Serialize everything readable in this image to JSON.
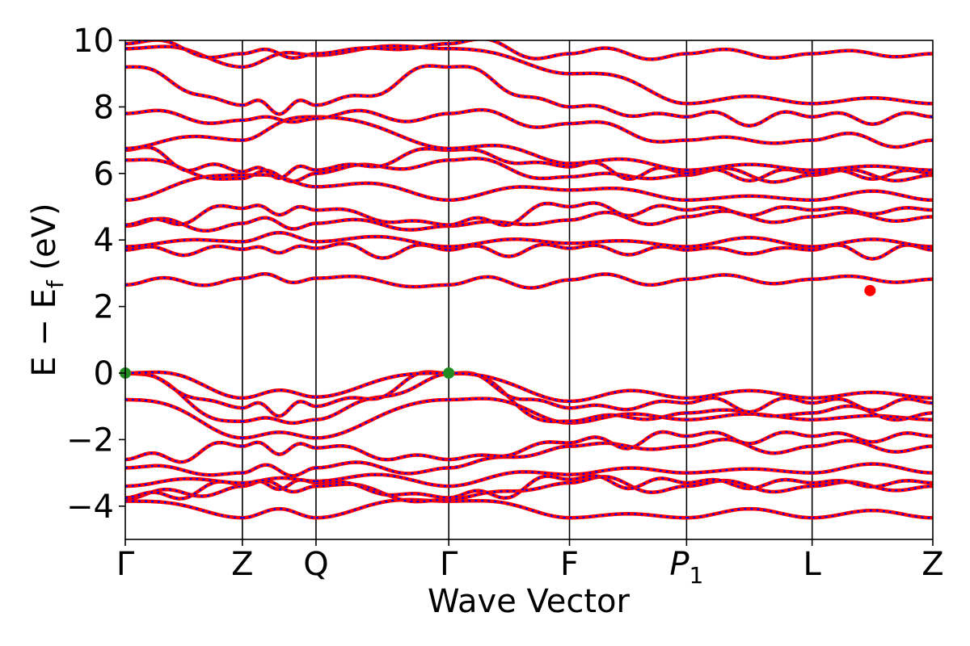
{
  "chart_data": {
    "type": "line",
    "xlabel": "Wave Vector",
    "ylabel": "E − E",
    "ylabel_sub": "f",
    "ylabel_unit": " (eV)",
    "ylim": [
      -5,
      10
    ],
    "yticks": [
      {
        "value": -4,
        "label": "−4"
      },
      {
        "value": -2,
        "label": "−2"
      },
      {
        "value": 0,
        "label": "0"
      },
      {
        "value": 2,
        "label": "2"
      },
      {
        "value": 4,
        "label": "4"
      },
      {
        "value": 6,
        "label": "6"
      },
      {
        "value": 8,
        "label": "8"
      },
      {
        "value": 10,
        "label": "10"
      }
    ],
    "kpoints": [
      {
        "label": "Γ",
        "sub": "",
        "italic": false,
        "x": 0
      },
      {
        "label": "Z",
        "sub": "",
        "italic": false,
        "x": 0.97
      },
      {
        "label": "Q",
        "sub": "",
        "italic": false,
        "x": 1.58
      },
      {
        "label": "Γ",
        "sub": "",
        "italic": false,
        "x": 2.68
      },
      {
        "label": "F",
        "sub": "",
        "italic": false,
        "x": 3.68
      },
      {
        "label": "P",
        "sub": "1",
        "italic": true,
        "x": 4.65
      },
      {
        "label": "L",
        "sub": "",
        "italic": false,
        "x": 5.69
      },
      {
        "label": "Z",
        "sub": "",
        "italic": false,
        "x": 6.69
      }
    ],
    "segments": [
      {
        "from": "Γ",
        "to": "Z",
        "bands": [
          {
            "start": -3.85,
            "end": -4.35
          },
          {
            "start": -3.8,
            "end": -3.4
          },
          {
            "start": -3.75,
            "end": -3.35
          },
          {
            "start": -3.4,
            "end": -3.3
          },
          {
            "start": -2.85,
            "end": -3.0
          },
          {
            "start": -2.6,
            "end": -2.2
          },
          {
            "start": -0.8,
            "end": -1.95
          },
          {
            "start": -0.02,
            "end": -1.45
          },
          {
            "start": -0.01,
            "end": -1.05
          },
          {
            "start": 0.0,
            "end": -0.75
          },
          {
            "start": 2.65,
            "end": 2.85
          },
          {
            "start": 3.7,
            "end": 3.72
          },
          {
            "start": 3.8,
            "end": 3.95
          },
          {
            "start": 4.42,
            "end": 4.5
          },
          {
            "start": 4.45,
            "end": 4.95
          },
          {
            "start": 5.2,
            "end": 5.95
          },
          {
            "start": 6.4,
            "end": 5.85
          },
          {
            "start": 6.7,
            "end": 6.05
          },
          {
            "start": 6.75,
            "end": 7.0
          },
          {
            "start": 7.8,
            "end": 7.6
          },
          {
            "start": 9.2,
            "end": 8.05
          },
          {
            "start": 9.75,
            "end": 9.2
          },
          {
            "start": 9.9,
            "end": 9.6
          }
        ]
      },
      {
        "from": "Z",
        "to": "Q",
        "bands": [
          {
            "start": -4.35,
            "end": -4.35
          },
          {
            "start": -3.4,
            "end": -3.4
          },
          {
            "start": -3.35,
            "end": -3.3
          },
          {
            "start": -3.3,
            "end": -3.25
          },
          {
            "start": -3.0,
            "end": -2.85
          },
          {
            "start": -2.2,
            "end": -2.25
          },
          {
            "start": -1.95,
            "end": -1.95
          },
          {
            "start": -1.45,
            "end": -1.4
          },
          {
            "start": -1.05,
            "end": -1.0
          },
          {
            "start": -0.75,
            "end": -0.72
          },
          {
            "start": 2.85,
            "end": 2.85
          },
          {
            "start": 3.72,
            "end": 3.75
          },
          {
            "start": 3.95,
            "end": 3.95
          },
          {
            "start": 4.5,
            "end": 4.5
          },
          {
            "start": 4.95,
            "end": 4.9
          },
          {
            "start": 5.95,
            "end": 5.6
          },
          {
            "start": 5.85,
            "end": 6.0
          },
          {
            "start": 6.05,
            "end": 6.1
          },
          {
            "start": 7.0,
            "end": 7.7
          },
          {
            "start": 7.6,
            "end": 7.65
          },
          {
            "start": 8.05,
            "end": 8.05
          },
          {
            "start": 9.2,
            "end": 9.55
          },
          {
            "start": 9.6,
            "end": 9.6
          }
        ]
      },
      {
        "from": "Q",
        "to": "Γ",
        "bands": [
          {
            "start": -4.35,
            "end": -3.85
          },
          {
            "start": -3.4,
            "end": -3.8
          },
          {
            "start": -3.3,
            "end": -3.75
          },
          {
            "start": -3.25,
            "end": -3.4
          },
          {
            "start": -2.85,
            "end": -2.85
          },
          {
            "start": -2.25,
            "end": -2.6
          },
          {
            "start": -1.95,
            "end": -0.8
          },
          {
            "start": -1.4,
            "end": -0.02
          },
          {
            "start": -1.0,
            "end": -0.01
          },
          {
            "start": -0.72,
            "end": 0.0
          },
          {
            "start": 2.85,
            "end": 2.65
          },
          {
            "start": 3.75,
            "end": 3.7
          },
          {
            "start": 3.95,
            "end": 3.8
          },
          {
            "start": 4.5,
            "end": 4.42
          },
          {
            "start": 4.9,
            "end": 4.45
          },
          {
            "start": 5.6,
            "end": 5.2
          },
          {
            "start": 6.0,
            "end": 6.4
          },
          {
            "start": 6.1,
            "end": 6.7
          },
          {
            "start": 7.7,
            "end": 6.75
          },
          {
            "start": 7.65,
            "end": 7.8
          },
          {
            "start": 8.05,
            "end": 9.2
          },
          {
            "start": 9.55,
            "end": 9.75
          },
          {
            "start": 9.6,
            "end": 9.9
          }
        ]
      },
      {
        "from": "Γ",
        "to": "F",
        "bands": [
          {
            "start": -3.85,
            "end": -4.35
          },
          {
            "start": -3.8,
            "end": -3.3
          },
          {
            "start": -3.75,
            "end": -3.2
          },
          {
            "start": -3.4,
            "end": -3.05
          },
          {
            "start": -2.85,
            "end": -2.2
          },
          {
            "start": -2.6,
            "end": -2.1
          },
          {
            "start": -0.8,
            "end": -1.5
          },
          {
            "start": -0.02,
            "end": -1.45
          },
          {
            "start": -0.01,
            "end": -1.05
          },
          {
            "start": 0.0,
            "end": -0.85
          },
          {
            "start": 2.65,
            "end": 2.8
          },
          {
            "start": 3.7,
            "end": 3.75
          },
          {
            "start": 3.8,
            "end": 3.9
          },
          {
            "start": 4.42,
            "end": 4.6
          },
          {
            "start": 4.45,
            "end": 5.0
          },
          {
            "start": 5.2,
            "end": 5.5
          },
          {
            "start": 6.4,
            "end": 5.9
          },
          {
            "start": 6.7,
            "end": 6.2
          },
          {
            "start": 6.75,
            "end": 6.3
          },
          {
            "start": 7.8,
            "end": 7.5
          },
          {
            "start": 9.2,
            "end": 8.0
          },
          {
            "start": 9.75,
            "end": 9.0
          },
          {
            "start": 9.9,
            "end": 9.6
          }
        ]
      },
      {
        "from": "F",
        "to": "P1",
        "bands": [
          {
            "start": -4.35,
            "end": -4.35
          },
          {
            "start": -3.3,
            "end": -3.4
          },
          {
            "start": -3.2,
            "end": -3.3
          },
          {
            "start": -3.05,
            "end": -3.0
          },
          {
            "start": -2.2,
            "end": -2.2
          },
          {
            "start": -2.1,
            "end": -1.9
          },
          {
            "start": -1.5,
            "end": -1.4
          },
          {
            "start": -1.45,
            "end": -1.2
          },
          {
            "start": -1.05,
            "end": -0.9
          },
          {
            "start": -0.85,
            "end": -0.75
          },
          {
            "start": 2.8,
            "end": 2.82
          },
          {
            "start": 3.75,
            "end": 3.7
          },
          {
            "start": 3.9,
            "end": 3.8
          },
          {
            "start": 4.6,
            "end": 4.7
          },
          {
            "start": 5.0,
            "end": 4.9
          },
          {
            "start": 5.5,
            "end": 5.2
          },
          {
            "start": 5.9,
            "end": 5.95
          },
          {
            "start": 6.2,
            "end": 6.0
          },
          {
            "start": 6.3,
            "end": 6.1
          },
          {
            "start": 7.5,
            "end": 7.0
          },
          {
            "start": 8.0,
            "end": 7.7
          },
          {
            "start": 9.0,
            "end": 8.1
          },
          {
            "start": 9.6,
            "end": 9.6
          }
        ]
      },
      {
        "from": "P1",
        "to": "L",
        "bands": [
          {
            "start": -4.35,
            "end": -4.35
          },
          {
            "start": -3.4,
            "end": -3.4
          },
          {
            "start": -3.3,
            "end": -3.3
          },
          {
            "start": -3.0,
            "end": -3.0
          },
          {
            "start": -2.2,
            "end": -2.2
          },
          {
            "start": -1.9,
            "end": -1.9
          },
          {
            "start": -1.4,
            "end": -1.4
          },
          {
            "start": -1.2,
            "end": -1.2
          },
          {
            "start": -0.9,
            "end": -0.9
          },
          {
            "start": -0.75,
            "end": -0.75
          },
          {
            "start": 2.82,
            "end": 2.82
          },
          {
            "start": 3.7,
            "end": 3.7
          },
          {
            "start": 3.8,
            "end": 3.8
          },
          {
            "start": 4.7,
            "end": 4.7
          },
          {
            "start": 4.9,
            "end": 4.9
          },
          {
            "start": 5.2,
            "end": 5.2
          },
          {
            "start": 5.95,
            "end": 5.95
          },
          {
            "start": 6.0,
            "end": 6.0
          },
          {
            "start": 6.1,
            "end": 6.1
          },
          {
            "start": 7.0,
            "end": 7.0
          },
          {
            "start": 7.7,
            "end": 7.7
          },
          {
            "start": 8.1,
            "end": 8.1
          },
          {
            "start": 9.6,
            "end": 9.6
          }
        ]
      },
      {
        "from": "L",
        "to": "Z",
        "bands": [
          {
            "start": -4.35,
            "end": -4.35
          },
          {
            "start": -3.4,
            "end": -3.4
          },
          {
            "start": -3.3,
            "end": -3.3
          },
          {
            "start": -3.0,
            "end": -3.0
          },
          {
            "start": -2.2,
            "end": -2.2
          },
          {
            "start": -1.9,
            "end": -1.9
          },
          {
            "start": -1.4,
            "end": -1.4
          },
          {
            "start": -1.2,
            "end": -1.2
          },
          {
            "start": -0.9,
            "end": -0.9
          },
          {
            "start": -0.75,
            "end": -0.75
          },
          {
            "start": 2.82,
            "end": 2.82
          },
          {
            "start": 3.7,
            "end": 3.7
          },
          {
            "start": 3.8,
            "end": 3.8
          },
          {
            "start": 4.7,
            "end": 4.7
          },
          {
            "start": 4.9,
            "end": 4.9
          },
          {
            "start": 5.2,
            "end": 5.2
          },
          {
            "start": 5.95,
            "end": 5.95
          },
          {
            "start": 6.0,
            "end": 6.0
          },
          {
            "start": 6.1,
            "end": 6.1
          },
          {
            "start": 7.0,
            "end": 7.0
          },
          {
            "start": 7.7,
            "end": 7.7
          },
          {
            "start": 8.1,
            "end": 8.1
          },
          {
            "start": 9.6,
            "end": 9.6
          }
        ]
      }
    ],
    "markers": [
      {
        "x": 0.0,
        "y": 0.0,
        "color": "#228b22"
      },
      {
        "x": 2.68,
        "y": 0.0,
        "color": "#228b22"
      },
      {
        "x": 6.17,
        "y": 2.48,
        "color": "#ff0000"
      }
    ],
    "colors": {
      "primary_line": "#ff0000",
      "secondary_line": "#0000ff"
    },
    "grid": false,
    "legend": "none"
  }
}
